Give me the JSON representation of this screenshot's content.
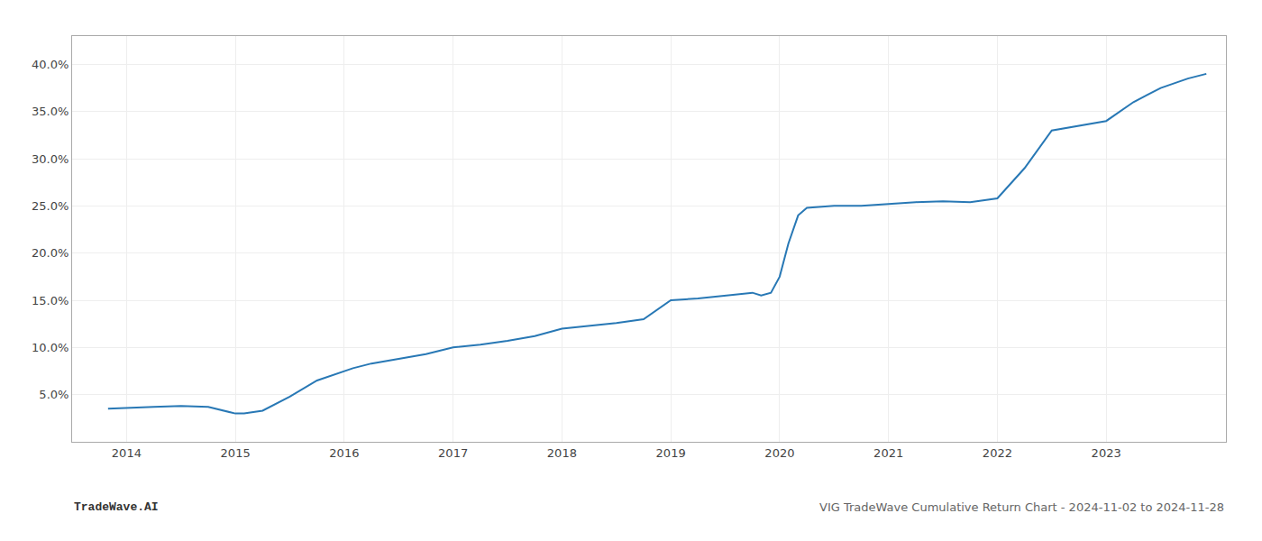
{
  "chart_data": {
    "type": "line",
    "x": [
      2013.83,
      2014.0,
      2014.25,
      2014.5,
      2014.75,
      2015.0,
      2015.08,
      2015.25,
      2015.5,
      2015.75,
      2016.0,
      2016.08,
      2016.25,
      2016.5,
      2016.75,
      2017.0,
      2017.25,
      2017.5,
      2017.75,
      2018.0,
      2018.25,
      2018.5,
      2018.75,
      2019.0,
      2019.25,
      2019.5,
      2019.75,
      2019.83,
      2019.92,
      2020.0,
      2020.08,
      2020.17,
      2020.25,
      2020.5,
      2020.75,
      2021.0,
      2021.25,
      2021.5,
      2021.75,
      2022.0,
      2022.25,
      2022.5,
      2022.75,
      2023.0,
      2023.25,
      2023.5,
      2023.75,
      2023.92
    ],
    "values": [
      0.035,
      0.036,
      0.037,
      0.038,
      0.037,
      0.03,
      0.03,
      0.033,
      0.048,
      0.065,
      0.075,
      0.078,
      0.083,
      0.088,
      0.093,
      0.1,
      0.103,
      0.107,
      0.112,
      0.12,
      0.123,
      0.126,
      0.13,
      0.15,
      0.152,
      0.155,
      0.158,
      0.155,
      0.158,
      0.175,
      0.21,
      0.24,
      0.248,
      0.25,
      0.25,
      0.252,
      0.254,
      0.255,
      0.254,
      0.258,
      0.29,
      0.33,
      0.335,
      0.34,
      0.36,
      0.375,
      0.385,
      0.39
    ],
    "color": "#2878b5",
    "xlim": [
      2013.5,
      2024.1
    ],
    "xticks": [
      2014,
      2015,
      2016,
      2017,
      2018,
      2019,
      2020,
      2021,
      2022,
      2023
    ],
    "ylim": [
      0.0,
      0.43
    ],
    "yticks": [
      {
        "value": 0.05,
        "label": "5.0%"
      },
      {
        "value": 0.1,
        "label": "10.0%"
      },
      {
        "value": 0.15,
        "label": "15.0%"
      },
      {
        "value": 0.2,
        "label": "20.0%"
      },
      {
        "value": 0.25,
        "label": "25.0%"
      },
      {
        "value": 0.3,
        "label": "30.0%"
      },
      {
        "value": 0.35,
        "label": "35.0%"
      },
      {
        "value": 0.4,
        "label": "40.0%"
      }
    ],
    "grid": true,
    "annotations": [
      "TradeWave.AI",
      "VIG TradeWave Cumulative Return Chart - 2024-11-02 to 2024-11-28"
    ]
  }
}
